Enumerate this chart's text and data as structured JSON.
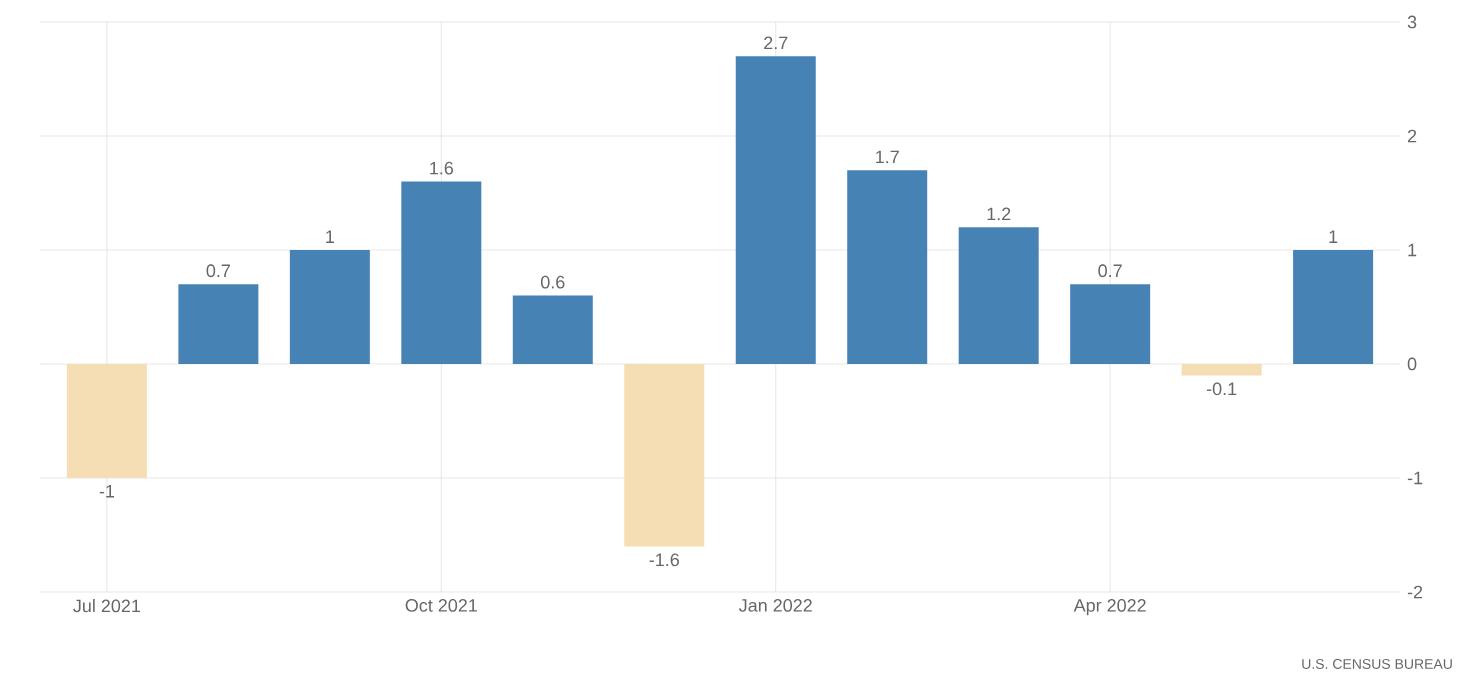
{
  "chart_data": {
    "type": "bar",
    "categories": [
      "Jul 2021",
      null,
      null,
      "Oct 2021",
      null,
      null,
      "Jan 2022",
      null,
      null,
      "Apr 2022",
      null,
      null
    ],
    "values": [
      -1,
      0.7,
      1,
      1.6,
      0.6,
      -1.6,
      2.7,
      1.7,
      1.2,
      0.7,
      -0.1,
      1
    ],
    "colors": [
      "#f5deb3",
      "#4682b4",
      "#4682b4",
      "#4682b4",
      "#4682b4",
      "#f5deb3",
      "#4682b4",
      "#4682b4",
      "#4682b4",
      "#4682b4",
      "#f5deb3",
      "#4682b4"
    ],
    "ylim": [
      -2,
      3
    ],
    "yticks": [
      -2,
      -1,
      0,
      1,
      2,
      3
    ],
    "grid": true,
    "data_labels": true,
    "annotations": [
      "U.S. CENSUS BUREAU"
    ]
  }
}
